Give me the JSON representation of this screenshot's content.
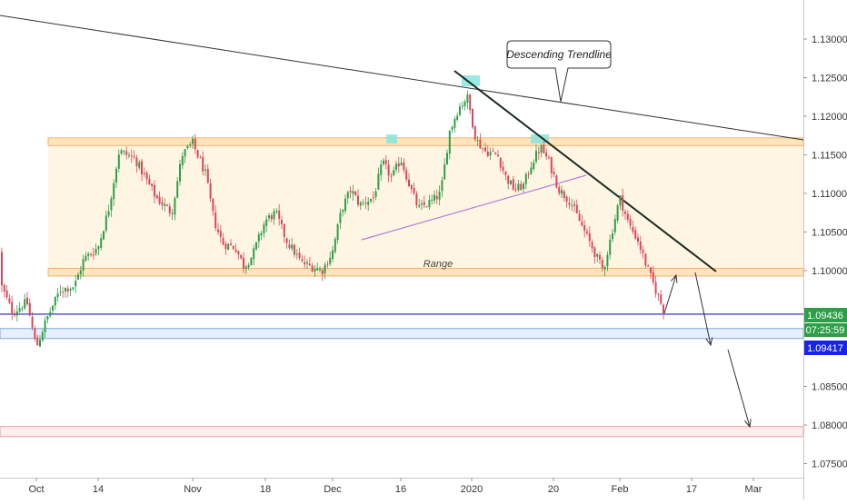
{
  "chart_data": {
    "type": "candlestick",
    "title": "",
    "y_axis": {
      "range": [
        1.0735,
        1.1345
      ],
      "ticks": [
        "1.13000",
        "1.12500",
        "1.12000",
        "1.11500",
        "1.11000",
        "1.10500",
        "1.10000",
        "1.08500",
        "1.08000",
        "1.07500"
      ],
      "tick_values": [
        1.13,
        1.125,
        1.12,
        1.115,
        1.11,
        1.105,
        1.1,
        1.085,
        1.08,
        1.075
      ]
    },
    "x_axis": {
      "ticks": [
        "Oct",
        "14",
        "Nov",
        "18",
        "Dec",
        "16",
        "2020",
        "20",
        "Feb",
        "17",
        "Mar"
      ],
      "tick_dates": [
        "2019-10-01",
        "2019-10-14",
        "2019-11-01",
        "2019-11-18",
        "2019-12-01",
        "2019-12-16",
        "2020-01-01",
        "2020-01-20",
        "2020-02-01",
        "2020-02-17",
        "2020-03-01"
      ]
    },
    "price_labels": {
      "current_price": "1.09436",
      "countdown": "07:25:59",
      "support_price": "1.09417"
    },
    "annotations": {
      "trendline_label": "Descending Trendline",
      "range_label": "Range"
    },
    "key_levels": {
      "range_top": [
        1.1162,
        1.1172
      ],
      "range_bottom": [
        1.0993,
        1.1003
      ],
      "support_zone": [
        1.0912,
        1.0925
      ],
      "lower_zone": [
        1.0785,
        1.0798
      ],
      "current_line": 1.09436
    },
    "price_path": [
      [
        "2019-09-20",
        1.1025
      ],
      [
        "2019-09-23",
        1.099
      ],
      [
        "2019-09-26",
        1.0945
      ],
      [
        "2019-09-29",
        1.096
      ],
      [
        "2019-10-01",
        1.09
      ],
      [
        "2019-10-03",
        1.0935
      ],
      [
        "2019-10-06",
        1.0975
      ],
      [
        "2019-10-09",
        1.098
      ],
      [
        "2019-10-11",
        1.1015
      ],
      [
        "2019-10-14",
        1.103
      ],
      [
        "2019-10-16",
        1.108
      ],
      [
        "2019-10-18",
        1.1155
      ],
      [
        "2019-10-21",
        1.1145
      ],
      [
        "2019-10-23",
        1.112
      ],
      [
        "2019-10-25",
        1.1095
      ],
      [
        "2019-10-28",
        1.1075
      ],
      [
        "2019-10-30",
        1.115
      ],
      [
        "2019-11-01",
        1.1165
      ],
      [
        "2019-11-04",
        1.1125
      ],
      [
        "2019-11-06",
        1.1065
      ],
      [
        "2019-11-08",
        1.1035
      ],
      [
        "2019-11-11",
        1.103
      ],
      [
        "2019-11-13",
        1.1005
      ],
      [
        "2019-11-15",
        1.102
      ],
      [
        "2019-11-18",
        1.1065
      ],
      [
        "2019-11-20",
        1.1075
      ],
      [
        "2019-11-22",
        1.104
      ],
      [
        "2019-11-25",
        1.101
      ],
      [
        "2019-11-27",
        1.1005
      ],
      [
        "2019-11-29",
        1.1
      ],
      [
        "2019-12-01",
        1.1025
      ],
      [
        "2019-12-03",
        1.108
      ],
      [
        "2019-12-05",
        1.1105
      ],
      [
        "2019-12-07",
        1.1085
      ],
      [
        "2019-12-10",
        1.1095
      ],
      [
        "2019-12-12",
        1.114
      ],
      [
        "2019-12-14",
        1.112
      ],
      [
        "2019-12-16",
        1.1145
      ],
      [
        "2019-12-18",
        1.111
      ],
      [
        "2019-12-20",
        1.108
      ],
      [
        "2019-12-23",
        1.109
      ],
      [
        "2019-12-25",
        1.11
      ],
      [
        "2019-12-27",
        1.118
      ],
      [
        "2019-12-29",
        1.121
      ],
      [
        "2019-12-31",
        1.1225
      ],
      [
        "2020-01-02",
        1.117
      ],
      [
        "2020-01-04",
        1.1155
      ],
      [
        "2020-01-07",
        1.115
      ],
      [
        "2020-01-09",
        1.112
      ],
      [
        "2020-01-11",
        1.1105
      ],
      [
        "2020-01-13",
        1.111
      ],
      [
        "2020-01-15",
        1.114
      ],
      [
        "2020-01-17",
        1.116
      ],
      [
        "2020-01-19",
        1.114
      ],
      [
        "2020-01-21",
        1.1105
      ],
      [
        "2020-01-23",
        1.109
      ],
      [
        "2020-01-25",
        1.106
      ],
      [
        "2020-01-27",
        1.103
      ],
      [
        "2020-01-29",
        1.1
      ],
      [
        "2020-02-01",
        1.1095
      ],
      [
        "2020-02-03",
        1.106
      ],
      [
        "2020-02-05",
        1.104
      ],
      [
        "2020-02-07",
        1.1005
      ],
      [
        "2020-02-09",
        1.0975
      ],
      [
        "2020-02-11",
        1.0945
      ]
    ],
    "notes": "Candlestick path approximated from the visible price action; sharp swing highs near 1.1239 (end of Dec) and 1.1170 (mid Jan)."
  }
}
